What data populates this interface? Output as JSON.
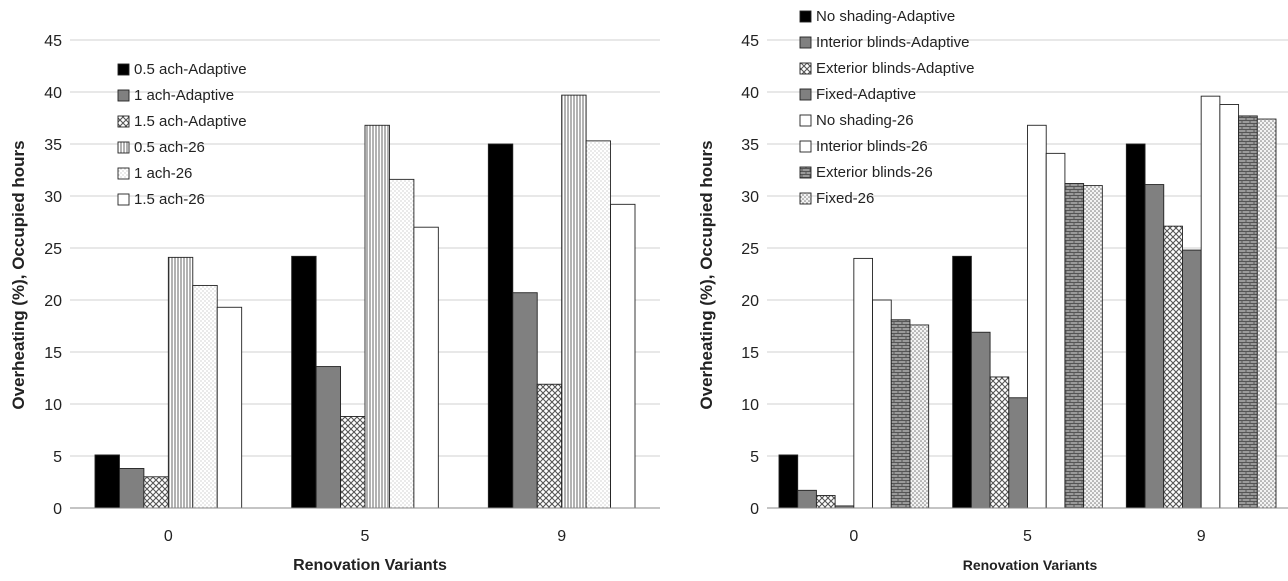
{
  "chart_data": [
    {
      "type": "bar",
      "xlabel": "Renovation Variants",
      "ylabel": "Overheating (%), Occupied hours",
      "ylim": [
        0,
        45
      ],
      "yticks": [
        0,
        5,
        10,
        15,
        20,
        25,
        30,
        35,
        40,
        45
      ],
      "grid": true,
      "legend_position": "top-left",
      "categories": [
        "0",
        "5",
        "9"
      ],
      "series": [
        {
          "name": "0.5 ach-Adaptive",
          "values": [
            5.1,
            24.2,
            35.0
          ]
        },
        {
          "name": "1 ach-Adaptive",
          "values": [
            3.8,
            13.6,
            20.7
          ]
        },
        {
          "name": "1.5 ach-Adaptive",
          "values": [
            3.0,
            8.8,
            11.9
          ]
        },
        {
          "name": "0.5 ach-26",
          "values": [
            24.1,
            36.8,
            39.7
          ]
        },
        {
          "name": "1 ach-26",
          "values": [
            21.4,
            31.6,
            35.3
          ]
        },
        {
          "name": "1.5 ach-26",
          "values": [
            19.3,
            27.0,
            29.2
          ]
        }
      ]
    },
    {
      "type": "bar",
      "xlabel": "Renovation Variants",
      "ylabel": "Overheating (%), Occupied hours",
      "ylim": [
        0,
        45
      ],
      "yticks": [
        0,
        5,
        10,
        15,
        20,
        25,
        30,
        35,
        40,
        45
      ],
      "grid": true,
      "legend_position": "top-left",
      "categories": [
        "0",
        "5",
        "9"
      ],
      "series": [
        {
          "name": "No shading-Adaptive",
          "values": [
            5.1,
            24.2,
            35.0
          ]
        },
        {
          "name": "Interior blinds-Adaptive",
          "values": [
            1.7,
            16.9,
            31.1
          ]
        },
        {
          "name": "Exterior blinds-Adaptive",
          "values": [
            1.2,
            12.6,
            27.1
          ]
        },
        {
          "name": "Fixed-Adaptive",
          "values": [
            0.2,
            10.6,
            24.8
          ]
        },
        {
          "name": "No shading-26",
          "values": [
            24.0,
            36.8,
            39.6
          ]
        },
        {
          "name": "Interior blinds-26",
          "values": [
            20.0,
            34.1,
            38.8
          ]
        },
        {
          "name": "Exterior blinds-26",
          "values": [
            18.1,
            31.2,
            37.7
          ]
        },
        {
          "name": "Fixed-26",
          "values": [
            17.6,
            31.0,
            37.4
          ]
        }
      ]
    }
  ],
  "styles": {
    "chart1": [
      "fill-black",
      "fill-gray",
      "pat-check",
      "pat-vlines",
      "pat-dots",
      "fill-white"
    ],
    "chart2": [
      "fill-black",
      "fill-gray",
      "pat-check",
      "fill-gray",
      "fill-white",
      "fill-white",
      "pat-brick",
      "pat-dots2"
    ]
  }
}
